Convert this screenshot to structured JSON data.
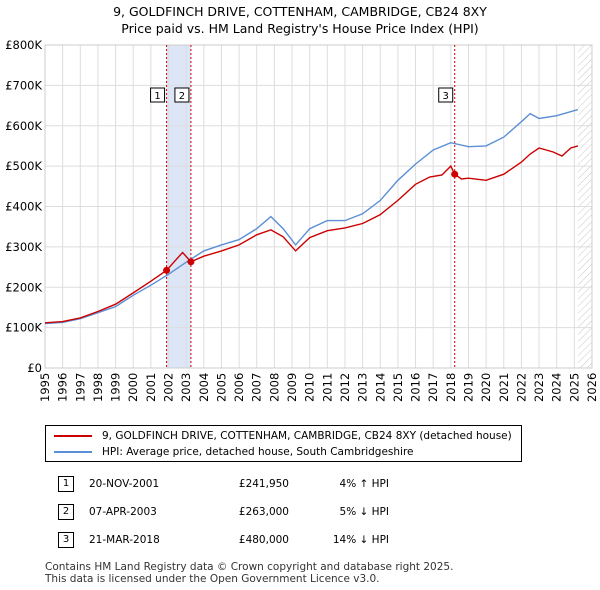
{
  "title_line1": "9, GOLDFINCH DRIVE, COTTENHAM, CAMBRIDGE, CB24 8XY",
  "title_line2": "Price paid vs. HM Land Registry's House Price Index (HPI)",
  "colors": {
    "price_line": "#cc0000",
    "hpi_line": "#5b8fd6",
    "shade": "#dde6f6",
    "grid": "#dddddd",
    "marker_line": "#cc0000"
  },
  "chart_data": {
    "type": "line",
    "ylim": [
      0,
      800000
    ],
    "xlim": [
      1995,
      2026
    ],
    "y_ticks": [
      0,
      100000,
      200000,
      300000,
      400000,
      500000,
      600000,
      700000,
      800000
    ],
    "y_tick_labels": [
      "£0",
      "£100K",
      "£200K",
      "£300K",
      "£400K",
      "£500K",
      "£600K",
      "£700K",
      "£800K"
    ],
    "x_ticks": [
      1995,
      1996,
      1997,
      1998,
      1999,
      2000,
      2001,
      2002,
      2003,
      2004,
      2005,
      2006,
      2007,
      2008,
      2009,
      2010,
      2011,
      2012,
      2013,
      2014,
      2015,
      2016,
      2017,
      2018,
      2019,
      2020,
      2021,
      2022,
      2023,
      2024,
      2025,
      2026
    ],
    "x_tick_labels": [
      "1995",
      "1996",
      "1997",
      "1998",
      "1999",
      "2000",
      "2001",
      "2002",
      "2003",
      "2004",
      "2005",
      "2006",
      "2007",
      "2008",
      "2009",
      "2010",
      "2011",
      "2012",
      "2013",
      "2014",
      "2015",
      "2016",
      "2017",
      "2018",
      "2019",
      "2020",
      "2021",
      "2022",
      "2023",
      "2024",
      "2025",
      "2026"
    ],
    "shaded_range": [
      2001.89,
      2003.27
    ],
    "data_end": 2025.2,
    "series": [
      {
        "name": "9, GOLDFINCH DRIVE, COTTENHAM, CAMBRIDGE, CB24 8XY (detached house)",
        "x": [
          1995,
          1996,
          1997,
          1998,
          1999,
          2000,
          2001,
          2001.89,
          2002.3,
          2002.8,
          2003.27,
          2004,
          2005,
          2006,
          2007,
          2007.8,
          2008.5,
          2009.2,
          2010,
          2011,
          2012,
          2013,
          2014,
          2015,
          2016,
          2016.8,
          2017.5,
          2018.0,
          2018.22,
          2018.6,
          2019,
          2020,
          2021,
          2022,
          2022.5,
          2023,
          2023.8,
          2024.3,
          2024.8,
          2025.2
        ],
        "y": [
          112000,
          115000,
          124000,
          140000,
          158000,
          186000,
          215000,
          241950,
          262000,
          286000,
          263000,
          277000,
          290000,
          305000,
          330000,
          342000,
          325000,
          290000,
          323000,
          340000,
          347000,
          358000,
          380000,
          415000,
          455000,
          473000,
          478000,
          500000,
          480000,
          468000,
          470000,
          465000,
          480000,
          510000,
          530000,
          545000,
          535000,
          525000,
          545000,
          550000
        ]
      },
      {
        "name": "HPI: Average price, detached house, South Cambridgeshire",
        "x": [
          1995,
          1996,
          1997,
          1998,
          1999,
          2000,
          2001,
          2002,
          2003,
          2004,
          2005,
          2006,
          2007,
          2007.8,
          2008.5,
          2009.2,
          2010,
          2011,
          2012,
          2013,
          2014,
          2015,
          2016,
          2017,
          2018,
          2019,
          2020,
          2021,
          2022,
          2022.5,
          2023,
          2024,
          2025.2
        ],
        "y": [
          110000,
          113000,
          122000,
          137000,
          152000,
          180000,
          205000,
          232000,
          262000,
          290000,
          305000,
          318000,
          345000,
          375000,
          345000,
          305000,
          345000,
          365000,
          365000,
          382000,
          415000,
          465000,
          505000,
          540000,
          558000,
          548000,
          550000,
          572000,
          610000,
          630000,
          618000,
          625000,
          640000
        ]
      }
    ],
    "sales": [
      {
        "label": "1",
        "x": 2001.89,
        "price": 241950
      },
      {
        "label": "2",
        "x": 2003.27,
        "price": 263000
      },
      {
        "label": "3",
        "x": 2018.22,
        "price": 480000
      }
    ]
  },
  "legend": {
    "price_label": "9, GOLDFINCH DRIVE, COTTENHAM, CAMBRIDGE, CB24 8XY (detached house)",
    "hpi_label": "HPI: Average price, detached house, South Cambridgeshire"
  },
  "sales_table": [
    {
      "num": "1",
      "date": "20-NOV-2001",
      "price": "£241,950",
      "hpi": "4% ↑ HPI"
    },
    {
      "num": "2",
      "date": "07-APR-2003",
      "price": "£263,000",
      "hpi": "5% ↓ HPI"
    },
    {
      "num": "3",
      "date": "21-MAR-2018",
      "price": "£480,000",
      "hpi": "14% ↓ HPI"
    }
  ],
  "footer_line1": "Contains HM Land Registry data © Crown copyright and database right 2025.",
  "footer_line2": "This data is licensed under the Open Government Licence v3.0."
}
